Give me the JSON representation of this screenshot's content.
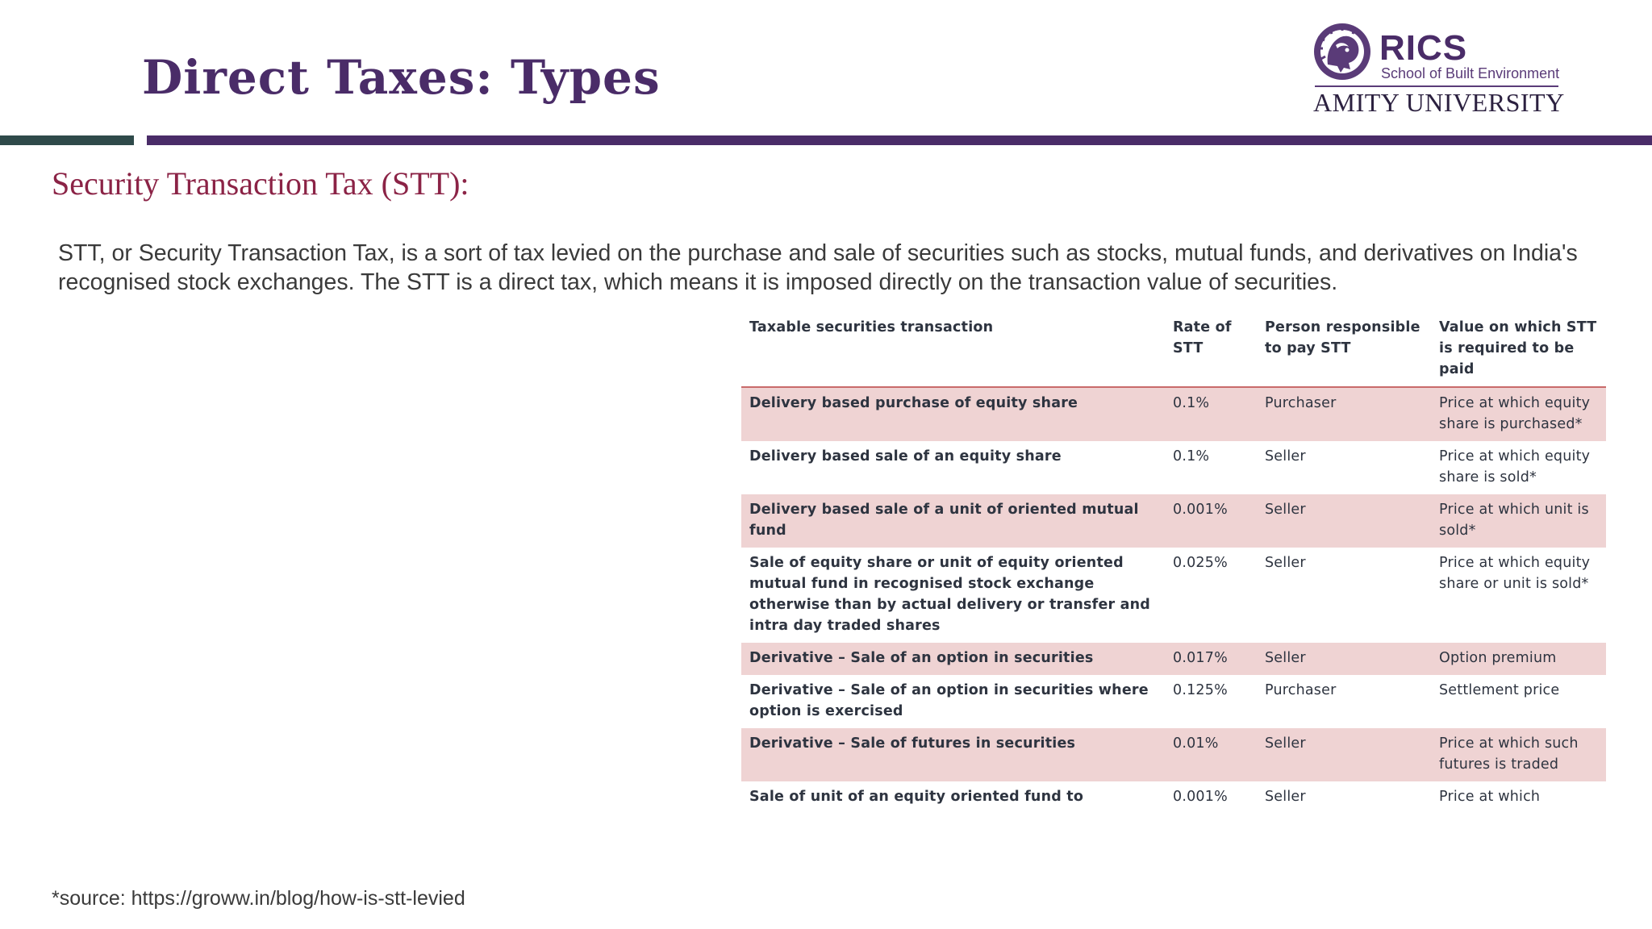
{
  "header": {
    "title": "Direct Taxes: Types",
    "logo": {
      "icon": "lion-emblem-icon",
      "brand": "RICS",
      "school": "School of Built Environment",
      "university": "AMITY UNIVERSITY"
    }
  },
  "colors": {
    "title": "#4a2c68",
    "accent_bar": "#4a2c68",
    "subtitle": "#8b2346",
    "row_shade": "#efd3d3"
  },
  "section": {
    "title": "Security Transaction Tax (STT):",
    "intro": "STT, or Security Transaction Tax, is a sort of tax levied on the purchase and sale of securities such as stocks, mutual funds, and derivatives on India's recognised stock exchanges. The STT is a direct tax, which means it is imposed directly on the transaction value of securities."
  },
  "table": {
    "headers": [
      "Taxable securities transaction",
      "Rate of STT",
      "Person responsible to pay STT",
      "Value on which STT is required to be paid"
    ],
    "rows": [
      [
        "Delivery based purchase of equity share",
        "0.1%",
        "Purchaser",
        "Price at which equity share is purchased*"
      ],
      [
        "Delivery based sale of an equity share",
        "0.1%",
        "Seller",
        "Price at which equity share is sold*"
      ],
      [
        "Delivery based sale of a unit of oriented mutual fund",
        "0.001%",
        "Seller",
        "Price at which unit is sold*"
      ],
      [
        "Sale of equity share or unit of equity oriented mutual fund in recognised stock exchange otherwise than by actual delivery or transfer and intra day traded shares",
        "0.025%",
        "Seller",
        "Price at which equity share or unit is sold*"
      ],
      [
        "Derivative – Sale of an option in securities",
        "0.017%",
        "Seller",
        "Option premium"
      ],
      [
        "Derivative – Sale of an option in securities where option is exercised",
        "0.125%",
        "Purchaser",
        "Settlement price"
      ],
      [
        "Derivative – Sale of futures in securities",
        "0.01%",
        "Seller",
        "Price at which such futures is traded"
      ],
      [
        "Sale of unit of an equity oriented fund to",
        "0.001%",
        "Seller",
        "Price at which"
      ]
    ]
  },
  "footer": {
    "source": "*source: https://groww.in/blog/how-is-stt-levied"
  }
}
